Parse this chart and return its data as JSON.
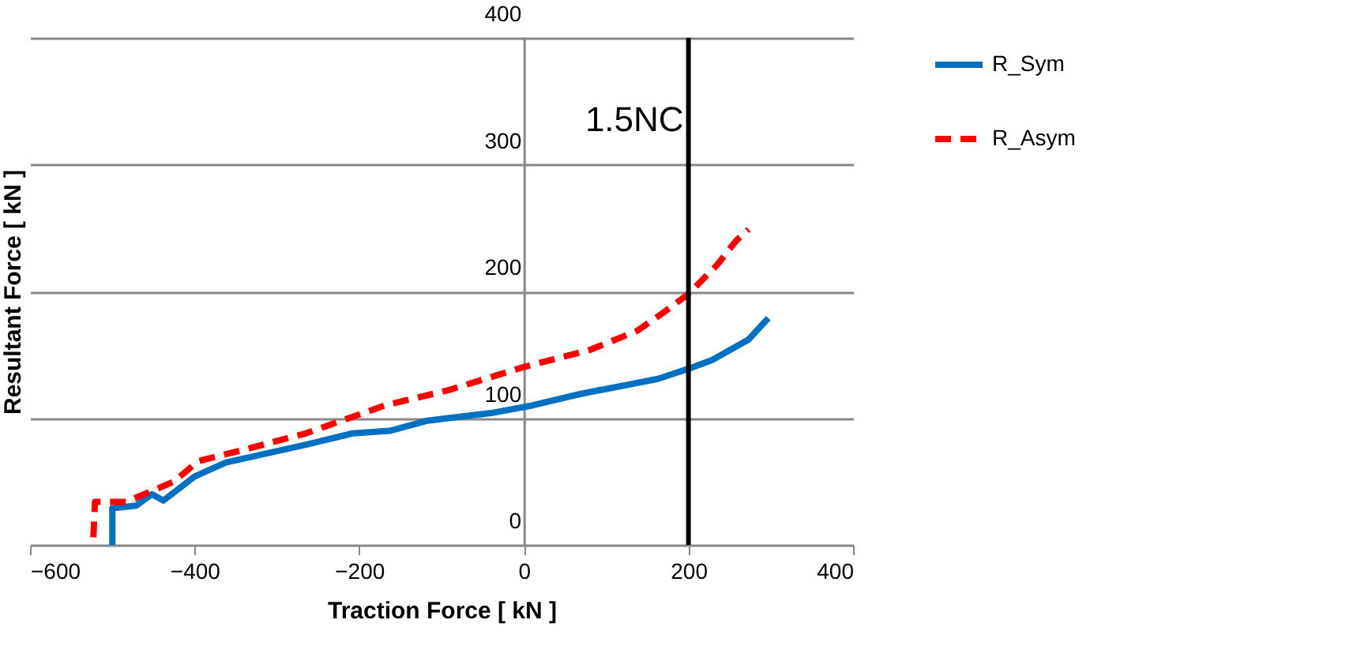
{
  "chart_data": {
    "type": "line",
    "xlabel": "Traction Force [ kN ]",
    "ylabel": "Resultant Force  [ kN ]",
    "xlim": [
      -600,
      400
    ],
    "xticks": [
      -600,
      -400,
      -200,
      0,
      200,
      400
    ],
    "ylim": [
      0,
      400
    ],
    "yticks": [
      0,
      100,
      200,
      300,
      400
    ],
    "grid": "y",
    "legend": "right",
    "marker": "none",
    "series": [
      {
        "name": "R_Sym",
        "color": "#0070c0",
        "line_style": "solid",
        "x": [
          -500,
          -500,
          -471,
          -452,
          -438,
          -400,
          -362,
          -265,
          -208,
          -163,
          -117,
          -92,
          -40,
          10,
          68,
          163,
          200,
          229,
          273,
          297
        ],
        "values": [
          0,
          29,
          31,
          40,
          35,
          54,
          65,
          79,
          88,
          90,
          98,
          100,
          104,
          110,
          119,
          131,
          139,
          146,
          162,
          179
        ]
      },
      {
        "name": "R_Asym",
        "color": "#ff0000",
        "line_style": "dashed",
        "x": [
          -523,
          -521,
          -483,
          -425,
          -396,
          -329,
          -265,
          -169,
          -92,
          -2,
          81,
          138,
          171,
          200,
          235,
          258,
          273
        ],
        "values": [
          6,
          34,
          34,
          50,
          66,
          77,
          88,
          110,
          122,
          140,
          154,
          169,
          184,
          198,
          221,
          240,
          249
        ]
      }
    ],
    "ref_lines": [
      {
        "axis": "x",
        "value": 200,
        "label": "1.5NC",
        "color": "#000000"
      }
    ]
  }
}
